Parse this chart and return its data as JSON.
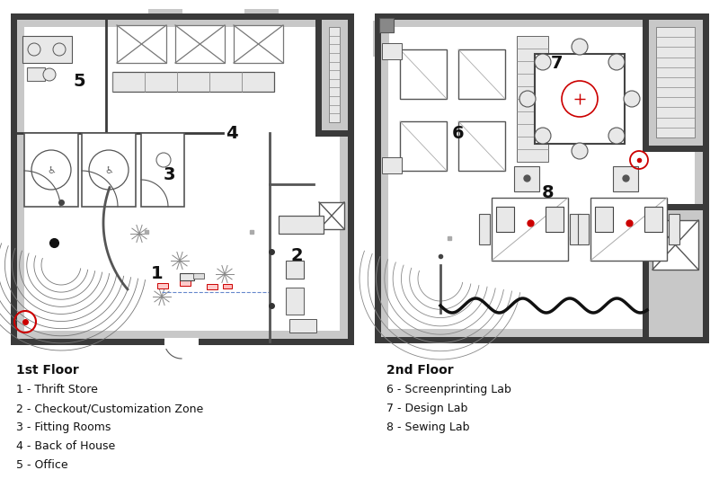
{
  "bg_color": "#ffffff",
  "wall_color": "#3a3a3a",
  "gray_fill": "#c8c8c8",
  "light_gray": "#e8e8e8",
  "floor1_label": "1st Floor",
  "floor2_label": "2nd Floor",
  "legend_1": [
    "1 - Thrift Store",
    "2 - Checkout/Customization Zone",
    "3 - Fitting Rooms",
    "4 - Back of House",
    "5 - Office"
  ],
  "legend_2": [
    "6 - Screenprinting Lab",
    "7 - Design Lab",
    "8 - Sewing Lab"
  ],
  "figsize": [
    8.0,
    5.33
  ],
  "dpi": 100,
  "wlw": 5,
  "mlw": 2,
  "tlw": 1
}
